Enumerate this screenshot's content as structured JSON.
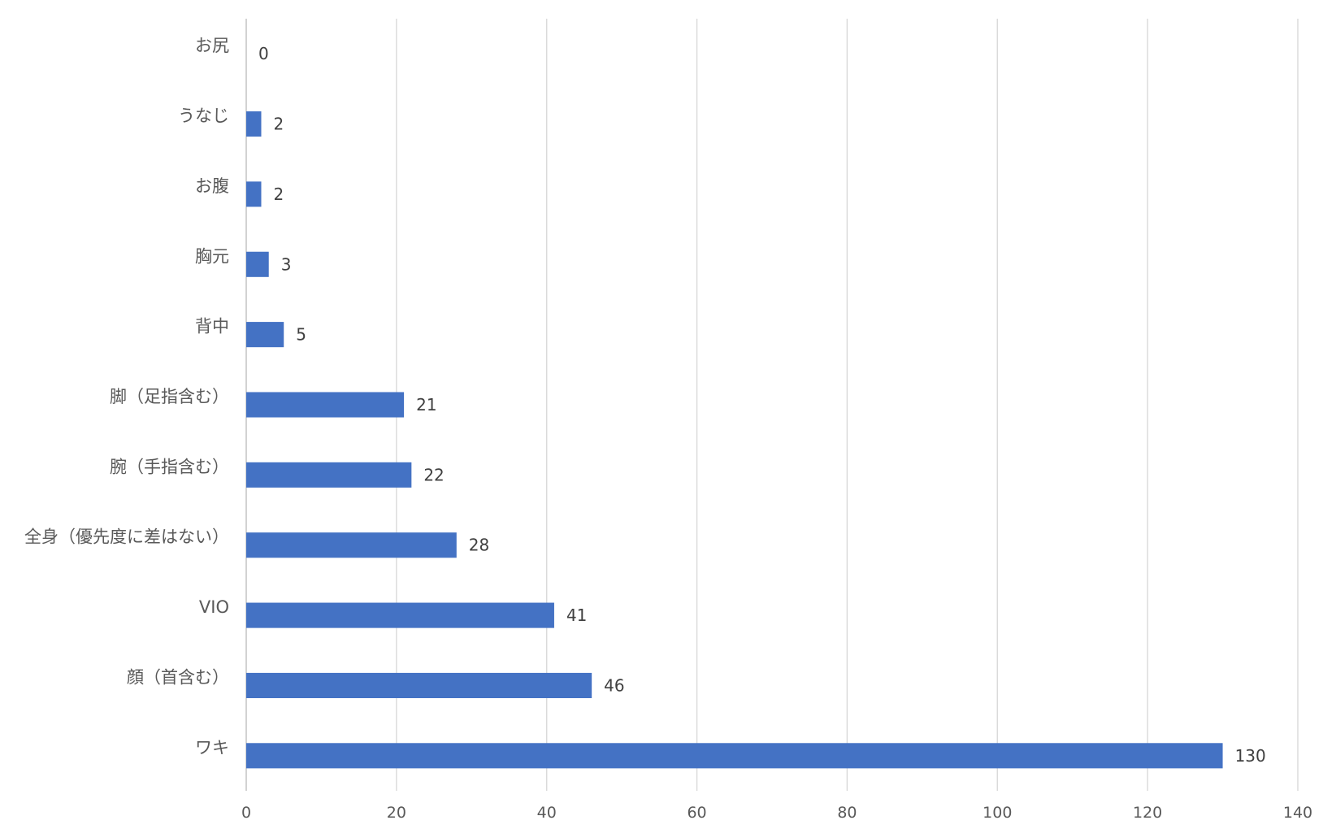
{
  "chart_data": {
    "type": "bar",
    "orientation": "horizontal",
    "categories": [
      "ワキ",
      "顔（首含む）",
      "VIO",
      "全身（優先度に差はない）",
      "腕（手指含む）",
      "脚（足指含む）",
      "背中",
      "胸元",
      "お腹",
      "うなじ",
      "お尻"
    ],
    "values": [
      130,
      46,
      41,
      28,
      22,
      21,
      5,
      3,
      2,
      2,
      0
    ],
    "xlim": [
      0,
      140
    ],
    "xticks": [
      0,
      20,
      40,
      60,
      80,
      100,
      120,
      140
    ],
    "title": "",
    "xlabel": "",
    "ylabel": "",
    "grid": true,
    "data_labels": true,
    "bar_color": "#4472c4"
  }
}
